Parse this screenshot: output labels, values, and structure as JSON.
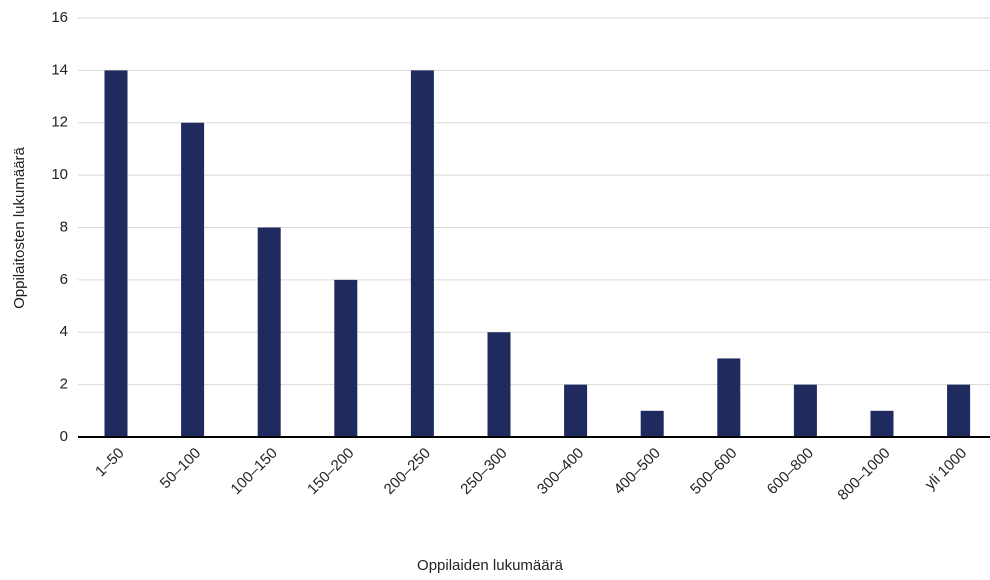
{
  "chart_data": {
    "type": "bar",
    "x_label": "Oppilaiden lukumäärä",
    "y_label": "Oppilaitosten lukumäärä",
    "categories": [
      "1–50",
      "50–100",
      "100–150",
      "150–200",
      "200–250",
      "250–300",
      "300–400",
      "400–500",
      "500–600",
      "600–800",
      "800–1000",
      "yli 1000"
    ],
    "values": [
      14,
      12,
      8,
      6,
      14,
      4,
      2,
      1,
      3,
      2,
      1,
      2
    ],
    "color": "#1f2a5e",
    "ylim": [
      0,
      16
    ],
    "yticks": [
      0,
      2,
      4,
      6,
      8,
      10,
      12,
      14,
      16
    ],
    "grid": true
  }
}
